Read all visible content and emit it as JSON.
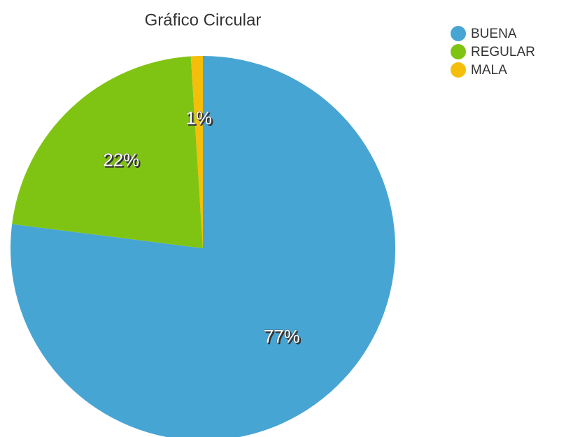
{
  "chart_data": {
    "type": "pie",
    "title": "Gráfico Circular",
    "categories": [
      "BUENA",
      "REGULAR",
      "MALA"
    ],
    "values": [
      77,
      22,
      1
    ],
    "value_labels": [
      "77%",
      "22%",
      "1%"
    ],
    "colors": [
      "#47a5d3",
      "#80c413",
      "#f5be0b"
    ],
    "legend": "top-right"
  }
}
